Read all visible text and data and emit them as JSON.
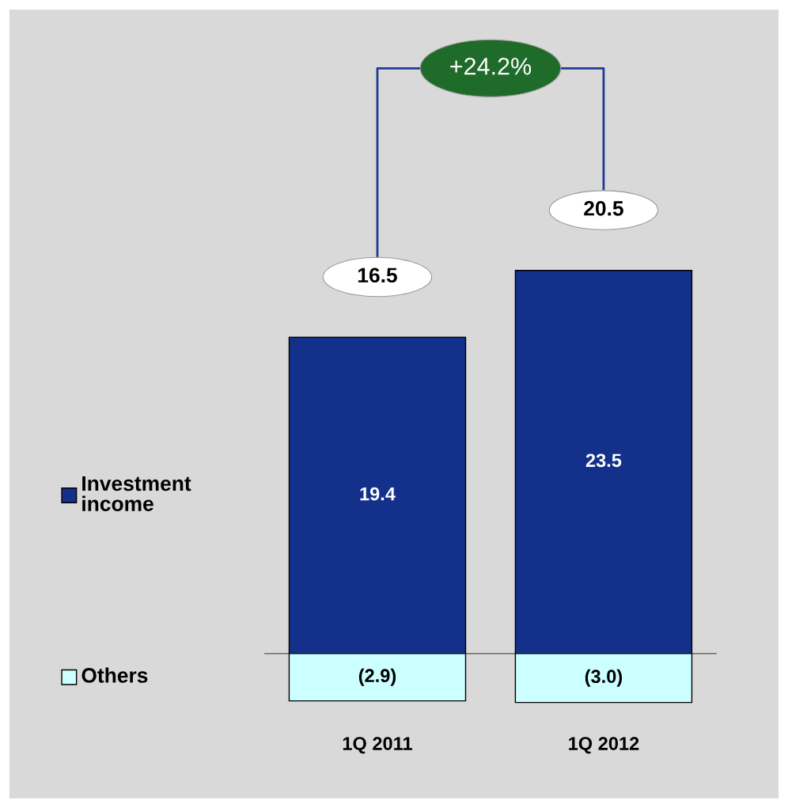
{
  "chart_data": {
    "type": "bar",
    "stacked": true,
    "categories": [
      "1Q 2011",
      "1Q 2012"
    ],
    "series": [
      {
        "name": "Investment income",
        "color": "#13318a",
        "values": [
          19.4,
          23.5
        ],
        "value_labels": [
          "19.4",
          "23.5"
        ]
      },
      {
        "name": "Others",
        "color": "#ccffff",
        "values": [
          -2.9,
          -3.0
        ],
        "value_labels": [
          "(2.9)",
          "(3.0)"
        ]
      }
    ],
    "totals": [
      "16.5",
      "20.5"
    ],
    "annotations": [
      "+24.2%"
    ],
    "tick_labels": "x",
    "legend": "left"
  }
}
